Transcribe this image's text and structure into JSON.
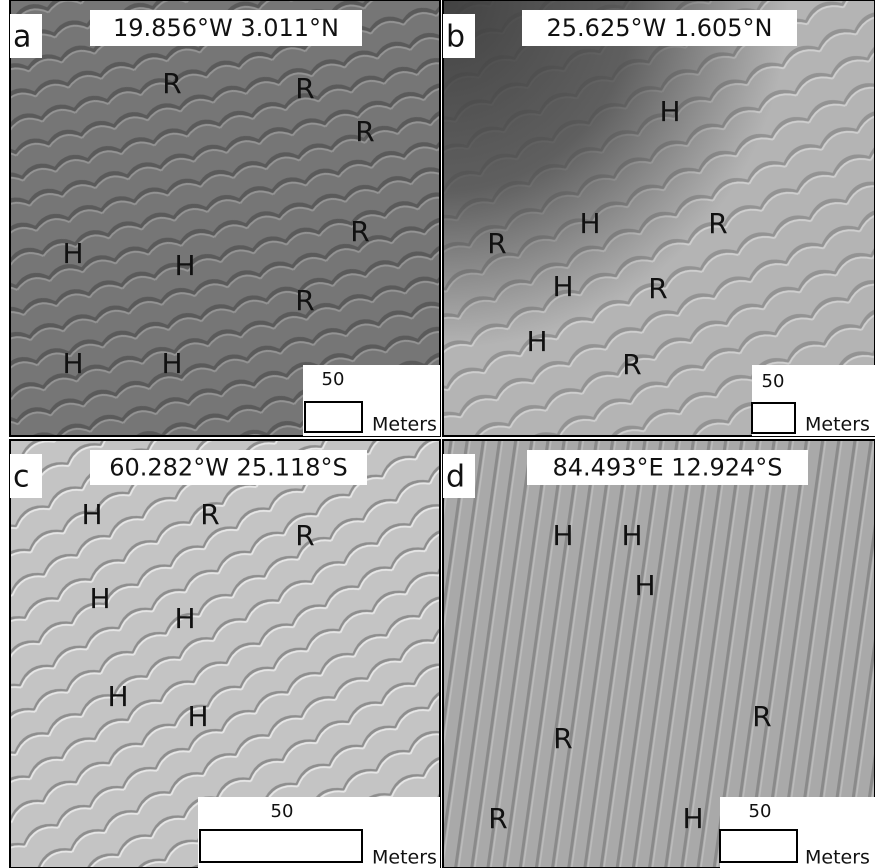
{
  "panels": [
    {
      "letter": "a",
      "coordinates": "19.856°W 3.011°N",
      "labels": [
        "R",
        "R",
        "R",
        "R",
        "R",
        "H",
        "H",
        "H",
        "H"
      ],
      "scale": "50",
      "unit": "Meters"
    },
    {
      "letter": "b",
      "coordinates": "25.625°W 1.605°N",
      "labels": [
        "H",
        "H",
        "R",
        "R",
        "H",
        "R",
        "H",
        "R"
      ],
      "scale": "50",
      "unit": "Meters"
    },
    {
      "letter": "c",
      "coordinates": "60.282°W 25.118°S",
      "labels": [
        "H",
        "R",
        "R",
        "H",
        "H",
        "H",
        "H"
      ],
      "scale": "50",
      "unit": "Meters"
    },
    {
      "letter": "d",
      "coordinates": "84.493°E 12.924°S",
      "labels": [
        "H",
        "H",
        "H",
        "R",
        "R",
        "R",
        "H"
      ],
      "scale": "50",
      "unit": "Meters"
    }
  ]
}
